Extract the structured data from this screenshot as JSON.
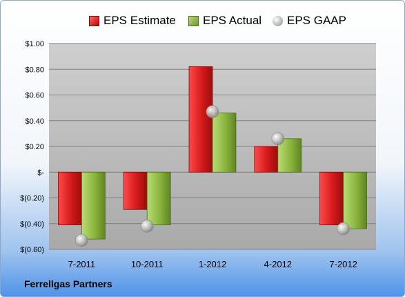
{
  "company": "Ferrellgas Partners",
  "legend": {
    "estimate": "EPS Estimate",
    "actual": "EPS Actual",
    "gaap": "EPS GAAP"
  },
  "colors": {
    "estimate": "#d81e1e",
    "actual": "#8db840",
    "gaap": "#b8b8b8"
  },
  "chart_data": {
    "type": "bar",
    "categories": [
      "7-2011",
      "10-2011",
      "1-2012",
      "4-2012",
      "7-2012"
    ],
    "series": [
      {
        "name": "EPS Estimate",
        "values": [
          -0.41,
          -0.29,
          0.82,
          0.2,
          -0.41
        ]
      },
      {
        "name": "EPS Actual",
        "values": [
          -0.52,
          -0.41,
          0.46,
          0.26,
          -0.44
        ]
      },
      {
        "name": "EPS GAAP",
        "values": [
          -0.53,
          -0.42,
          0.47,
          0.26,
          -0.44
        ],
        "marker": "circle"
      }
    ],
    "yticks": [
      1.0,
      0.8,
      0.6,
      0.4,
      0.2,
      0,
      -0.2,
      -0.4,
      -0.6
    ],
    "ytick_labels": [
      "$1.00",
      "$0.80",
      "$0.60",
      "$0.40",
      "$0.20",
      "$-",
      "$(0.20)",
      "$(0.40)",
      "$(0.60)"
    ],
    "ylim": [
      -0.6,
      1.0
    ],
    "grid": true,
    "legend_position": "top"
  }
}
